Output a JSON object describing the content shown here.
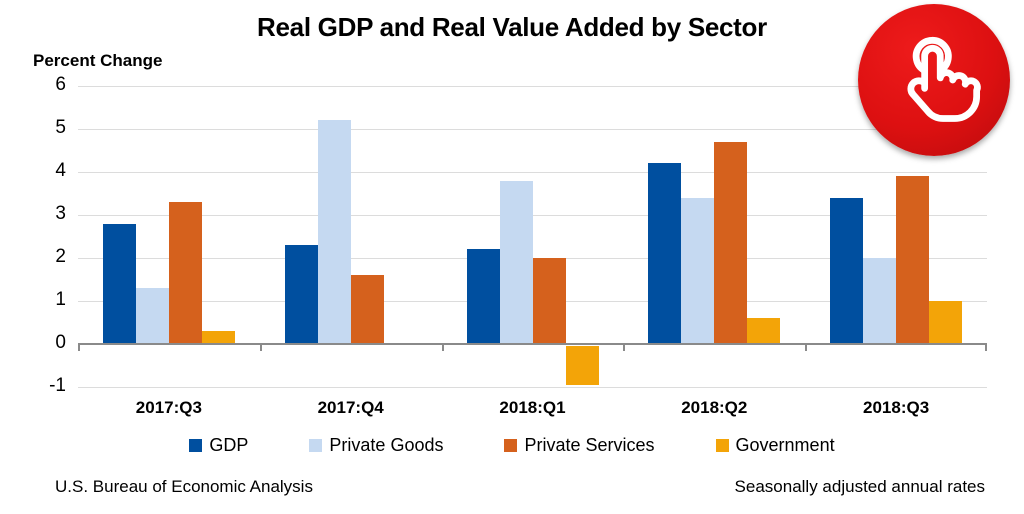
{
  "chart_data": {
    "type": "bar",
    "title": "Real GDP and Real Value Added by Sector",
    "ylabel": "Percent Change",
    "xlabel": "",
    "categories": [
      "2017:Q3",
      "2017:Q4",
      "2018:Q1",
      "2018:Q2",
      "2018:Q3"
    ],
    "series": [
      {
        "name": "GDP",
        "color": "#004f9f",
        "values": [
          2.8,
          2.3,
          2.2,
          4.2,
          3.4
        ]
      },
      {
        "name": "Private Goods",
        "color": "#c5d9f1",
        "values": [
          1.3,
          5.2,
          3.8,
          3.4,
          2.0
        ]
      },
      {
        "name": "Private Services",
        "color": "#d5611d",
        "values": [
          3.3,
          1.6,
          2.0,
          4.7,
          3.9
        ]
      },
      {
        "name": "Government",
        "color": "#f3a408",
        "values": [
          0.3,
          0.0,
          -0.9,
          0.6,
          1.0
        ]
      }
    ],
    "ylim": [
      -1,
      6
    ],
    "ytick_step": 1,
    "grid": true,
    "legend_position": "bottom"
  },
  "footer": {
    "left": "U.S. Bureau of Economic Analysis",
    "right": "Seasonally adjusted annual rates"
  },
  "badge": {
    "icon": "tap-hand-icon",
    "color": "#dd1011"
  }
}
